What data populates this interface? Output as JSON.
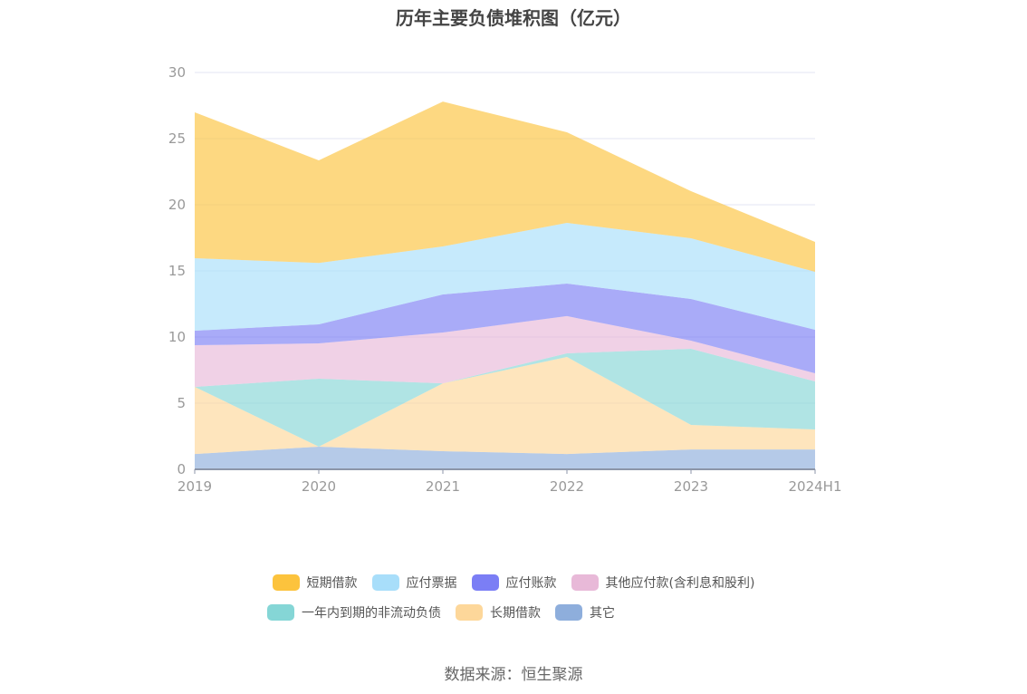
{
  "chart_data": {
    "type": "area",
    "stacked": true,
    "title": "历年主要负债堆积图（亿元）",
    "categories": [
      "2019",
      "2020",
      "2021",
      "2022",
      "2023",
      "2024H1"
    ],
    "ylim": [
      0,
      30
    ],
    "yticks": [
      0,
      5,
      10,
      15,
      20,
      25,
      30
    ],
    "grid": true,
    "legend_position": "bottom",
    "series": [
      {
        "name": "其它",
        "color": "#8eaedc",
        "values": [
          1.16,
          1.71,
          1.37,
          1.16,
          1.5,
          1.5
        ]
      },
      {
        "name": "长期借款",
        "color": "#fdd79a",
        "values": [
          5.07,
          0,
          5.13,
          7.33,
          1.86,
          1.51
        ]
      },
      {
        "name": "一年内到期的非流动负债",
        "color": "#85d6d6",
        "values": [
          0,
          5.14,
          0,
          0.28,
          5.75,
          3.63
        ]
      },
      {
        "name": "其他应付款(含利息和股利)",
        "color": "#e8b9d8",
        "values": [
          3.15,
          2.67,
          3.84,
          2.81,
          0.62,
          0.62
        ]
      },
      {
        "name": "应付账款",
        "color": "#7b7ef5",
        "values": [
          1.1,
          1.44,
          2.88,
          2.46,
          3.15,
          3.29
        ]
      },
      {
        "name": "应付票据",
        "color": "#a8defa",
        "values": [
          5.48,
          4.64,
          3.63,
          4.59,
          4.59,
          4.38
        ]
      },
      {
        "name": "短期借款",
        "color": "#fcc33d",
        "values": [
          11.03,
          7.76,
          10.95,
          6.85,
          3.56,
          2.26
        ]
      }
    ],
    "legend_order": [
      "短期借款",
      "应付票据",
      "应付账款",
      "其他应付款(含利息和股利)",
      "一年内到期的非流动负债",
      "长期借款",
      "其它"
    ]
  },
  "source": "数据来源：恒生聚源"
}
